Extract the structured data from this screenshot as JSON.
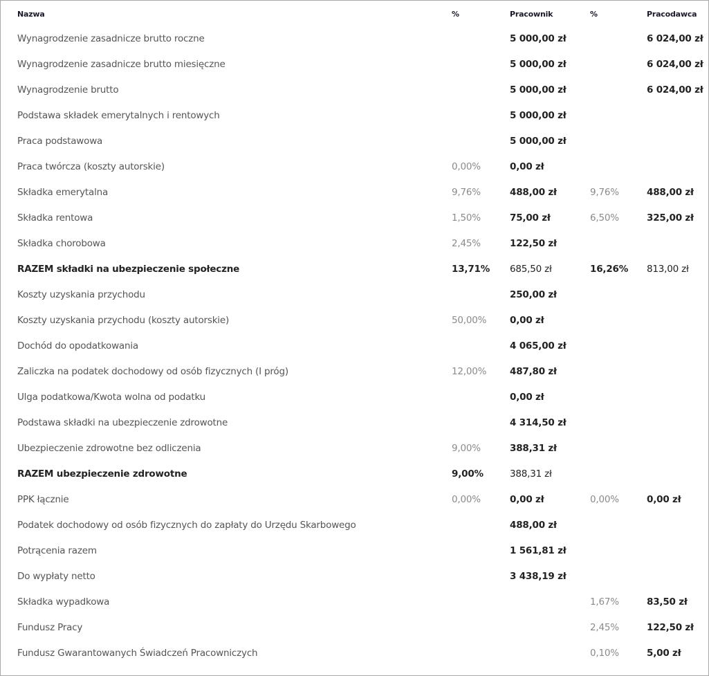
{
  "header": {
    "name": "Nazwa",
    "pct1": "%",
    "employee": "Pracownik",
    "pct2": "%",
    "employer": "Pracodawca"
  },
  "rows": [
    {
      "name": "Wynagrodzenie zasadnicze brutto roczne",
      "pct1": "",
      "employee": "5 000,00 zł",
      "pct2": "",
      "employer": "6 024,00 zł",
      "bold": false
    },
    {
      "name": "Wynagrodzenie zasadnicze brutto miesięczne",
      "pct1": "",
      "employee": "5 000,00 zł",
      "pct2": "",
      "employer": "6 024,00 zł",
      "bold": false
    },
    {
      "name": "Wynagrodzenie brutto",
      "pct1": "",
      "employee": "5 000,00 zł",
      "pct2": "",
      "employer": "6 024,00 zł",
      "bold": false
    },
    {
      "name": "Podstawa składek emerytalnych i rentowych",
      "pct1": "",
      "employee": "5 000,00 zł",
      "pct2": "",
      "employer": "",
      "bold": false
    },
    {
      "name": "Praca podstawowa",
      "pct1": "",
      "employee": "5 000,00 zł",
      "pct2": "",
      "employer": "",
      "bold": false
    },
    {
      "name": "Praca twórcza (koszty autorskie)",
      "pct1": "0,00%",
      "employee": "0,00 zł",
      "pct2": "",
      "employer": "",
      "bold": false
    },
    {
      "name": "Składka emerytalna",
      "pct1": "9,76%",
      "employee": "488,00 zł",
      "pct2": "9,76%",
      "employer": "488,00 zł",
      "bold": false
    },
    {
      "name": "Składka rentowa",
      "pct1": "1,50%",
      "employee": "75,00 zł",
      "pct2": "6,50%",
      "employer": "325,00 zł",
      "bold": false
    },
    {
      "name": "Składka chorobowa",
      "pct1": "2,45%",
      "employee": "122,50 zł",
      "pct2": "",
      "employer": "",
      "bold": false
    },
    {
      "name": "RAZEM składki na ubezpieczenie społeczne",
      "pct1": "13,71%",
      "employee": "685,50 zł",
      "pct2": "16,26%",
      "employer": "813,00 zł",
      "bold": true
    },
    {
      "name": "Koszty uzyskania przychodu",
      "pct1": "",
      "employee": "250,00 zł",
      "pct2": "",
      "employer": "",
      "bold": false
    },
    {
      "name": "Koszty uzyskania przychodu (koszty autorskie)",
      "pct1": "50,00%",
      "employee": "0,00 zł",
      "pct2": "",
      "employer": "",
      "bold": false
    },
    {
      "name": "Dochód do opodatkowania",
      "pct1": "",
      "employee": "4 065,00 zł",
      "pct2": "",
      "employer": "",
      "bold": false
    },
    {
      "name": "Zaliczka na podatek dochodowy od osób fizycznych (I próg)",
      "pct1": "12,00%",
      "employee": "487,80 zł",
      "pct2": "",
      "employer": "",
      "bold": false
    },
    {
      "name": "Ulga podatkowa/Kwota wolna od podatku",
      "pct1": "",
      "employee": "0,00 zł",
      "pct2": "",
      "employer": "",
      "bold": false
    },
    {
      "name": "Podstawa składki na ubezpieczenie zdrowotne",
      "pct1": "",
      "employee": "4 314,50 zł",
      "pct2": "",
      "employer": "",
      "bold": false
    },
    {
      "name": "Ubezpieczenie zdrowotne bez odliczenia",
      "pct1": "9,00%",
      "employee": "388,31 zł",
      "pct2": "",
      "employer": "",
      "bold": false
    },
    {
      "name": "RAZEM ubezpieczenie zdrowotne",
      "pct1": "9,00%",
      "employee": "388,31 zł",
      "pct2": "",
      "employer": "",
      "bold": true
    },
    {
      "name": "PPK łącznie",
      "pct1": "0,00%",
      "employee": "0,00 zł",
      "pct2": "0,00%",
      "employer": "0,00 zł",
      "bold": false
    },
    {
      "name": "Podatek dochodowy od osób fizycznych do zapłaty do Urzędu Skarbowego",
      "pct1": "",
      "employee": "488,00 zł",
      "pct2": "",
      "employer": "",
      "bold": false
    },
    {
      "name": "Potrącenia razem",
      "pct1": "",
      "employee": "1 561,81 zł",
      "pct2": "",
      "employer": "",
      "bold": false
    },
    {
      "name": "Do wypłaty netto",
      "pct1": "",
      "employee": "3 438,19 zł",
      "pct2": "",
      "employer": "",
      "bold": false
    },
    {
      "name": "Składka wypadkowa",
      "pct1": "",
      "employee": "",
      "pct2": "1,67%",
      "employer": "83,50 zł",
      "bold": false
    },
    {
      "name": "Fundusz Pracy",
      "pct1": "",
      "employee": "",
      "pct2": "2,45%",
      "employer": "122,50 zł",
      "bold": false
    },
    {
      "name": "Fundusz Gwarantowanych Świadczeń Pracowniczych",
      "pct1": "",
      "employee": "",
      "pct2": "0,10%",
      "employer": "5,00 zł",
      "bold": false
    }
  ]
}
